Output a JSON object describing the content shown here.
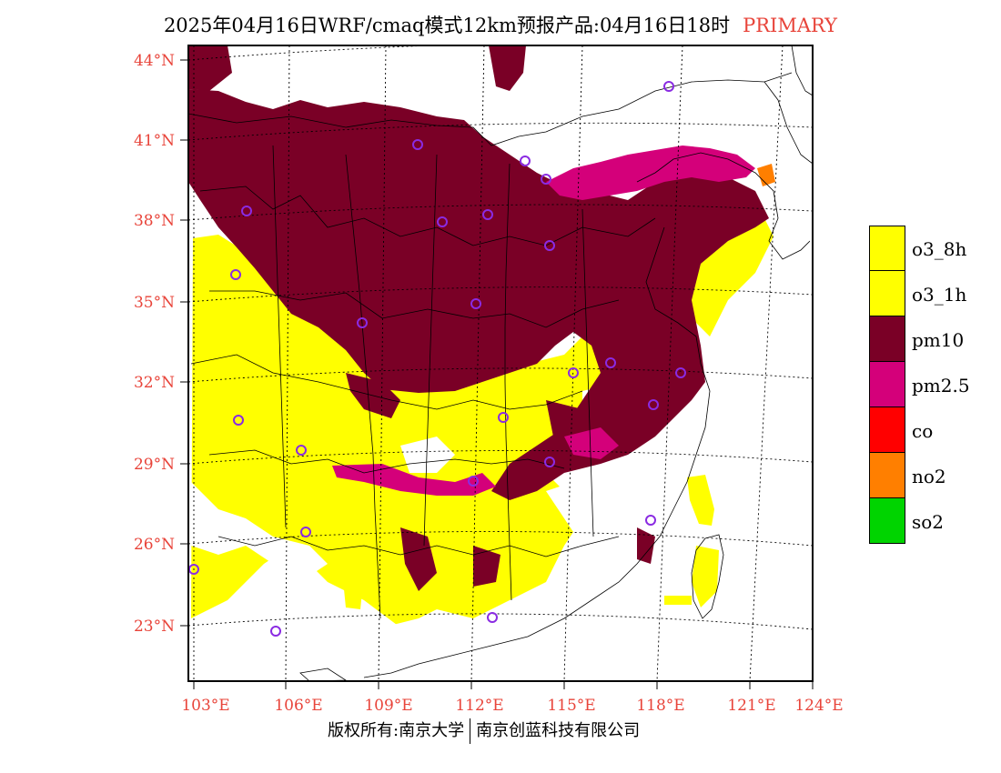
{
  "title": {
    "text": "2025年04月16日WRF/cmaq模式12km预报产品:04月16日18时",
    "tag": "PRIMARY"
  },
  "map": {
    "lat_labels": [
      "44°N",
      "41°N",
      "38°N",
      "35°N",
      "32°N",
      "29°N",
      "26°N",
      "23°N"
    ],
    "lon_labels": [
      "103°E",
      "106°E",
      "109°E",
      "112°E",
      "115°E",
      "118°E",
      "121°E",
      "124°E"
    ]
  },
  "legend": {
    "items": [
      {
        "label": "o3_8h",
        "color": "#ffff00"
      },
      {
        "label": "o3_1h",
        "color": "#ffff00"
      },
      {
        "label": "pm10",
        "color": "#7a0026"
      },
      {
        "label": "pm2.5",
        "color": "#d4007a"
      },
      {
        "label": "co",
        "color": "#ff0000"
      },
      {
        "label": "no2",
        "color": "#ff7f00"
      },
      {
        "label": "so2",
        "color": "#00d400"
      }
    ]
  },
  "footer": {
    "left": "版权所有:南京大学",
    "right": "南京创蓝科技有限公司"
  },
  "colors": {
    "tick": "#e8443a",
    "station": "#8a2be2"
  }
}
